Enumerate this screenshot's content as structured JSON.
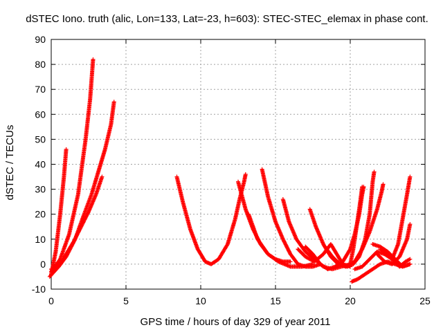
{
  "chart_data": {
    "type": "scatter",
    "title": "dSTEC Iono. truth (alic, Lon=133, Lat=-23, h=603): STEC-STEC_elemax in phase cont.",
    "xlabel": "GPS time / hours of day 329 of year 2011",
    "ylabel": "dSTEC  / TECUs",
    "xlim": [
      0,
      25
    ],
    "ylim": [
      -10,
      90
    ],
    "xticks": [
      0,
      5,
      10,
      15,
      20,
      25
    ],
    "yticks": [
      -10,
      0,
      10,
      20,
      30,
      40,
      50,
      60,
      70,
      80,
      90
    ],
    "grid": true,
    "marker": "+",
    "color": "#ff0000",
    "arcs": [
      {
        "points": [
          [
            0.0,
            -4
          ],
          [
            0.3,
            5
          ],
          [
            0.6,
            20
          ],
          [
            0.85,
            35
          ],
          [
            1.0,
            46
          ]
        ]
      },
      {
        "points": [
          [
            0.0,
            -3
          ],
          [
            0.6,
            2
          ],
          [
            1.2,
            12
          ],
          [
            1.8,
            28
          ],
          [
            2.3,
            50
          ],
          [
            2.6,
            66
          ],
          [
            2.8,
            82
          ]
        ]
      },
      {
        "points": [
          [
            0.0,
            -2
          ],
          [
            0.5,
            -1
          ],
          [
            1.0,
            3
          ],
          [
            1.6,
            10
          ],
          [
            2.2,
            20
          ],
          [
            2.7,
            28
          ],
          [
            3.2,
            38
          ],
          [
            3.6,
            46
          ],
          [
            4.0,
            56
          ],
          [
            4.2,
            65
          ]
        ]
      },
      {
        "points": [
          [
            -0.1,
            -5
          ],
          [
            0.5,
            -1
          ],
          [
            1.0,
            4
          ],
          [
            1.5,
            9
          ],
          [
            2.0,
            15
          ],
          [
            2.5,
            21
          ],
          [
            3.0,
            28
          ],
          [
            3.4,
            35
          ]
        ]
      },
      {
        "points": [
          [
            8.4,
            35
          ],
          [
            8.8,
            25
          ],
          [
            9.3,
            14
          ],
          [
            9.8,
            6
          ],
          [
            10.3,
            1
          ],
          [
            10.7,
            0
          ],
          [
            11.2,
            2
          ],
          [
            11.8,
            8
          ],
          [
            12.3,
            18
          ],
          [
            12.6,
            26
          ],
          [
            12.9,
            33
          ],
          [
            13.0,
            36
          ]
        ]
      },
      {
        "points": [
          [
            12.5,
            33
          ],
          [
            13.0,
            22
          ],
          [
            13.5,
            14
          ],
          [
            14.0,
            8
          ],
          [
            14.5,
            4
          ],
          [
            15.0,
            2
          ],
          [
            15.5,
            1
          ],
          [
            16.0,
            1
          ]
        ]
      },
      {
        "points": [
          [
            14.1,
            38
          ],
          [
            14.5,
            27
          ],
          [
            15.0,
            17
          ],
          [
            15.5,
            10
          ],
          [
            16.0,
            4
          ],
          [
            16.5,
            0
          ],
          [
            17.0,
            -1
          ],
          [
            17.5,
            -1
          ],
          [
            18.0,
            0
          ]
        ]
      },
      {
        "points": [
          [
            13.2,
            20
          ],
          [
            13.8,
            10
          ],
          [
            14.5,
            4
          ],
          [
            15.2,
            1
          ],
          [
            16.0,
            -1
          ],
          [
            16.8,
            -1
          ],
          [
            17.5,
            0
          ]
        ]
      },
      {
        "points": [
          [
            15.5,
            26
          ],
          [
            15.9,
            17
          ],
          [
            16.4,
            10
          ],
          [
            17.0,
            5
          ],
          [
            17.6,
            2
          ],
          [
            18.2,
            -1
          ],
          [
            18.8,
            -2
          ],
          [
            19.4,
            -1
          ],
          [
            20.0,
            0
          ]
        ]
      },
      {
        "points": [
          [
            17.3,
            22
          ],
          [
            17.7,
            15
          ],
          [
            18.2,
            8
          ],
          [
            18.7,
            3
          ],
          [
            19.2,
            0
          ],
          [
            19.7,
            -1
          ],
          [
            20.2,
            0
          ],
          [
            20.6,
            3
          ],
          [
            21.0,
            10
          ],
          [
            21.3,
            20
          ],
          [
            21.5,
            33
          ],
          [
            21.6,
            37
          ]
        ]
      },
      {
        "points": [
          [
            17.0,
            7
          ],
          [
            17.5,
            4
          ],
          [
            18.0,
            0
          ],
          [
            18.5,
            -2
          ],
          [
            19.0,
            -1
          ],
          [
            19.5,
            1
          ],
          [
            20.0,
            6
          ],
          [
            20.3,
            12
          ],
          [
            20.6,
            20
          ],
          [
            20.8,
            28
          ],
          [
            20.9,
            31
          ]
        ]
      },
      {
        "points": [
          [
            16.5,
            6
          ],
          [
            17.0,
            3
          ],
          [
            17.6,
            1
          ],
          [
            18.2,
            4
          ],
          [
            18.7,
            8
          ],
          [
            19.0,
            5
          ],
          [
            19.5,
            0
          ],
          [
            20.0,
            -1
          ]
        ]
      },
      {
        "points": [
          [
            18.3,
            7
          ],
          [
            18.8,
            3
          ],
          [
            19.3,
            0
          ],
          [
            19.8,
            -1
          ],
          [
            20.3,
            1
          ],
          [
            20.8,
            6
          ],
          [
            21.3,
            13
          ],
          [
            21.8,
            22
          ],
          [
            22.1,
            29
          ],
          [
            22.2,
            32
          ]
        ]
      },
      {
        "points": [
          [
            20.0,
            0
          ],
          [
            20.2,
            6
          ],
          [
            20.4,
            14
          ],
          [
            20.6,
            22
          ],
          [
            20.8,
            31
          ]
        ]
      },
      {
        "points": [
          [
            20.1,
            -7
          ],
          [
            20.5,
            -6
          ],
          [
            21.0,
            -4
          ],
          [
            21.5,
            -2
          ],
          [
            22.0,
            0
          ],
          [
            22.5,
            1
          ],
          [
            23.0,
            0
          ],
          [
            23.5,
            -1
          ],
          [
            24.0,
            0
          ]
        ]
      },
      {
        "points": [
          [
            21.5,
            8
          ],
          [
            22.0,
            7
          ],
          [
            22.5,
            5
          ],
          [
            23.0,
            2
          ],
          [
            23.5,
            -1
          ],
          [
            24.0,
            0
          ]
        ]
      },
      {
        "points": [
          [
            20.3,
            -2
          ],
          [
            20.8,
            -1
          ],
          [
            21.3,
            2
          ],
          [
            21.8,
            5
          ],
          [
            22.3,
            4
          ],
          [
            22.8,
            2
          ],
          [
            23.3,
            -1
          ],
          [
            23.7,
            1
          ],
          [
            24.0,
            2
          ]
        ]
      },
      {
        "points": [
          [
            21.8,
            4
          ],
          [
            22.3,
            1
          ],
          [
            22.8,
            0
          ],
          [
            23.3,
            3
          ],
          [
            23.8,
            10
          ],
          [
            24.0,
            16
          ]
        ]
      },
      {
        "points": [
          [
            22.0,
            6
          ],
          [
            22.5,
            4
          ],
          [
            22.8,
            2
          ],
          [
            23.2,
            8
          ],
          [
            23.5,
            18
          ],
          [
            23.8,
            28
          ],
          [
            24.0,
            35
          ]
        ]
      }
    ]
  }
}
